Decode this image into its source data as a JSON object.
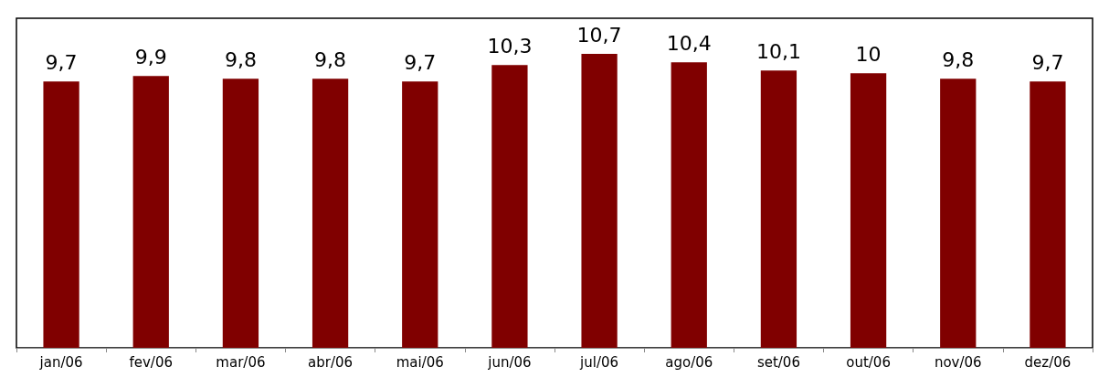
{
  "chart_data": {
    "type": "bar",
    "categories": [
      "jan/06",
      "fev/06",
      "mar/06",
      "abr/06",
      "mai/06",
      "jun/06",
      "jul/06",
      "ago/06",
      "set/06",
      "out/06",
      "nov/06",
      "dez/06"
    ],
    "values": [
      9.7,
      9.9,
      9.8,
      9.8,
      9.7,
      10.3,
      10.7,
      10.4,
      10.1,
      10,
      9.8,
      9.7
    ],
    "value_labels": [
      "9,7",
      "9,9",
      "9,8",
      "9,8",
      "9,7",
      "10,3",
      "10,7",
      "10,4",
      "10,1",
      "10",
      "9,8",
      "9,7"
    ],
    "color": "#800000",
    "tick_labels": "x"
  }
}
